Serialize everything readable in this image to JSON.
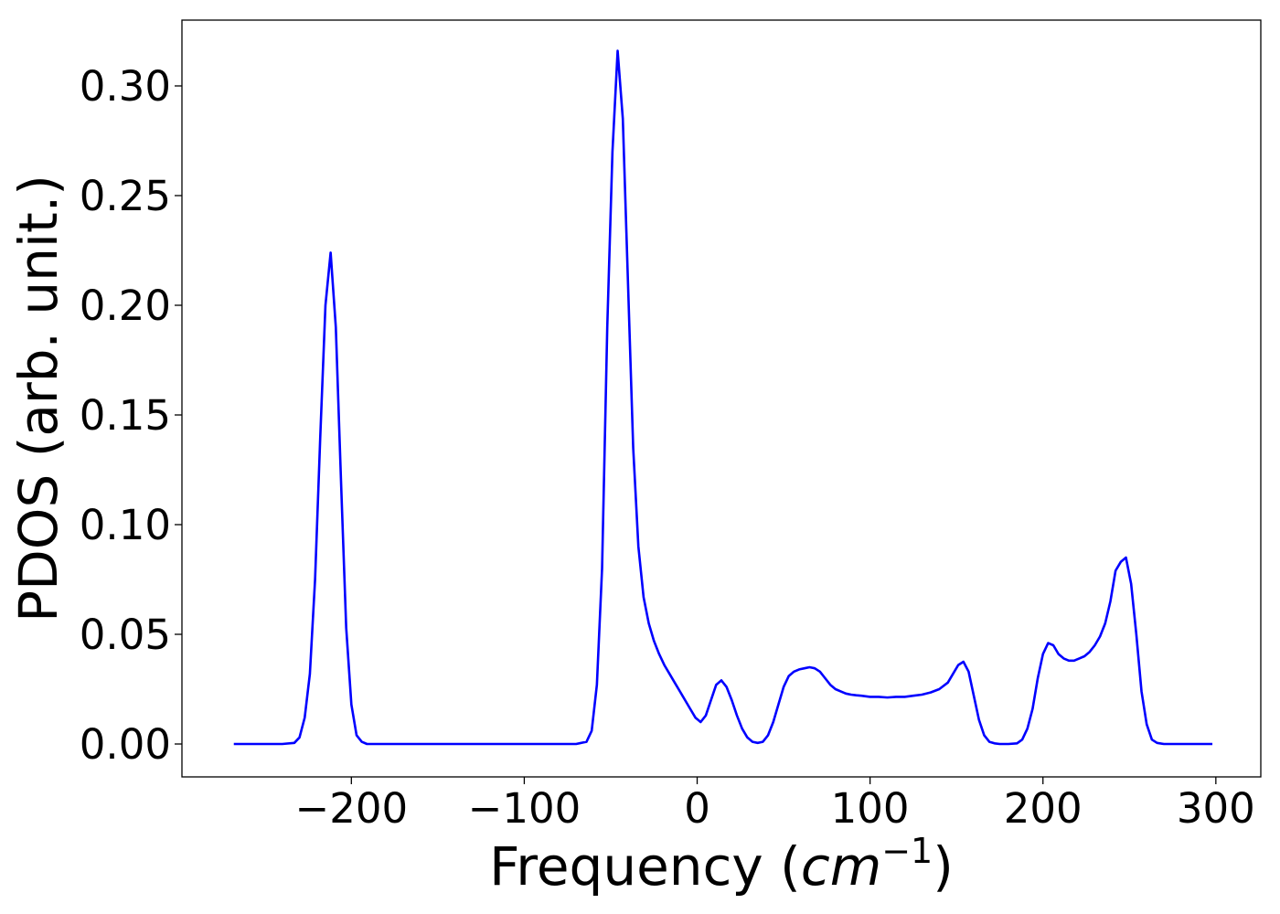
{
  "chart_data": {
    "type": "line",
    "title": "",
    "xlabel_prefix": "Frequency (",
    "xlabel_unit": "cm",
    "xlabel_exp": "−1",
    "xlabel_suffix": ")",
    "ylabel": "PDOS (arb. unit.)",
    "xlim": [
      -298,
      326
    ],
    "ylim": [
      -0.015,
      0.33
    ],
    "xticks": [
      -200,
      -100,
      0,
      100,
      200,
      300
    ],
    "xtick_labels": [
      "−200",
      "−100",
      "0",
      "100",
      "200",
      "300"
    ],
    "yticks": [
      0.0,
      0.05,
      0.1,
      0.15,
      0.2,
      0.25,
      0.3
    ],
    "ytick_labels": [
      "0.00",
      "0.05",
      "0.10",
      "0.15",
      "0.20",
      "0.25",
      "0.30"
    ],
    "grid": false,
    "series": [
      {
        "color": "#0000ff",
        "x": [
          -268,
          -240,
          -233,
          -230,
          -227,
          -224,
          -221,
          -218,
          -215,
          -212,
          -209,
          -206,
          -203,
          -200,
          -197,
          -194,
          -191,
          -188,
          -180,
          -150,
          -100,
          -70,
          -64,
          -61,
          -58,
          -55,
          -52,
          -49,
          -46,
          -43,
          -40,
          -37,
          -34,
          -31,
          -28,
          -25,
          -22,
          -19,
          -16,
          -13,
          -10,
          -7,
          -4,
          -1,
          2,
          5,
          8,
          11,
          14,
          17,
          20,
          23,
          26,
          29,
          32,
          35,
          38,
          41,
          44,
          47,
          50,
          53,
          56,
          59,
          62,
          65,
          68,
          71,
          74,
          77,
          80,
          83,
          86,
          89,
          92,
          95,
          100,
          105,
          110,
          115,
          120,
          125,
          130,
          135,
          140,
          145,
          148,
          151,
          154,
          157,
          160,
          163,
          166,
          169,
          172,
          175,
          180,
          185,
          188,
          191,
          194,
          197,
          200,
          203,
          206,
          209,
          212,
          215,
          218,
          221,
          224,
          227,
          230,
          233,
          236,
          239,
          242,
          245,
          248,
          251,
          254,
          257,
          260,
          263,
          266,
          270,
          298
        ],
        "y": [
          0.0,
          0.0,
          0.0005,
          0.003,
          0.012,
          0.032,
          0.075,
          0.14,
          0.2,
          0.224,
          0.19,
          0.12,
          0.053,
          0.018,
          0.004,
          0.001,
          0.0,
          0.0,
          0.0,
          0.0,
          0.0,
          0.0,
          0.001,
          0.006,
          0.027,
          0.08,
          0.19,
          0.27,
          0.316,
          0.285,
          0.21,
          0.135,
          0.09,
          0.067,
          0.055,
          0.047,
          0.041,
          0.036,
          0.032,
          0.028,
          0.024,
          0.02,
          0.016,
          0.012,
          0.01,
          0.013,
          0.02,
          0.027,
          0.029,
          0.026,
          0.02,
          0.013,
          0.007,
          0.003,
          0.001,
          0.0005,
          0.001,
          0.004,
          0.01,
          0.018,
          0.026,
          0.031,
          0.033,
          0.034,
          0.0345,
          0.035,
          0.0345,
          0.033,
          0.03,
          0.027,
          0.025,
          0.024,
          0.023,
          0.0225,
          0.0222,
          0.022,
          0.0215,
          0.0215,
          0.0212,
          0.0215,
          0.0215,
          0.022,
          0.0225,
          0.0235,
          0.025,
          0.028,
          0.032,
          0.036,
          0.0375,
          0.033,
          0.022,
          0.011,
          0.004,
          0.001,
          0.0003,
          0.0,
          0.0,
          0.0003,
          0.002,
          0.007,
          0.016,
          0.03,
          0.041,
          0.046,
          0.045,
          0.041,
          0.039,
          0.038,
          0.038,
          0.039,
          0.04,
          0.042,
          0.045,
          0.049,
          0.055,
          0.065,
          0.079,
          0.083,
          0.085,
          0.073,
          0.05,
          0.024,
          0.009,
          0.002,
          0.0005,
          0.0,
          0.0
        ]
      }
    ]
  }
}
